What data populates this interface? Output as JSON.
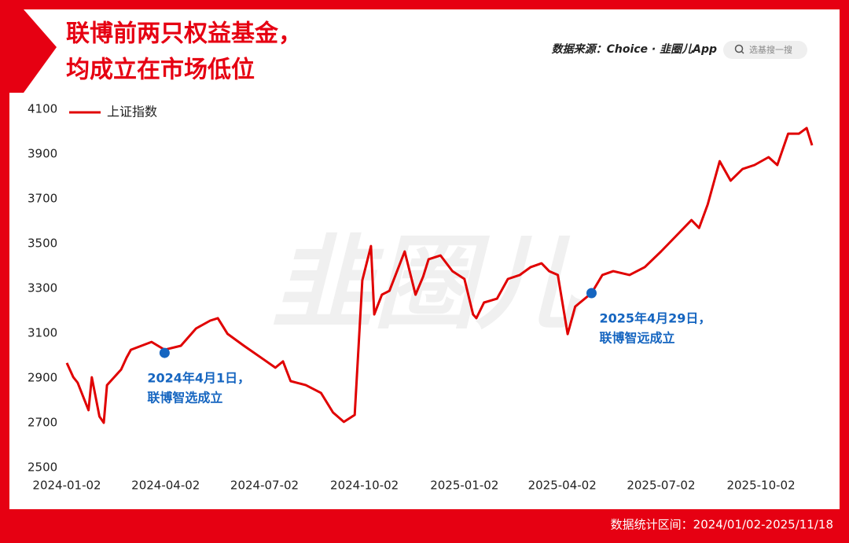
{
  "title": [
    "联博前两只权益基金，",
    "均成立在市场低位"
  ],
  "source": "数据来源：Choice · 韭圈儿App",
  "search_placeholder": "选基搜一搜",
  "watermark": "韭圈儿",
  "footer": "数据统计区间：2024/01/02-2025/11/18",
  "chart_data": {
    "type": "line",
    "x": [
      "2024-01-02",
      "2024-01-08",
      "2024-01-12",
      "2024-01-22",
      "2024-01-25",
      "2024-02-01",
      "2024-02-05",
      "2024-02-08",
      "2024-02-21",
      "2024-02-26",
      "2024-03-01",
      "2024-03-20",
      "2024-04-01",
      "2024-04-16",
      "2024-04-30",
      "2024-05-13",
      "2024-05-20",
      "2024-05-29",
      "2024-06-13",
      "2024-07-02",
      "2024-07-12",
      "2024-07-19",
      "2024-07-26",
      "2024-08-09",
      "2024-08-23",
      "2024-09-03",
      "2024-09-13",
      "2024-09-23",
      "2024-09-30",
      "2024-10-08",
      "2024-10-11",
      "2024-10-18",
      "2024-10-25",
      "2024-11-08",
      "2024-11-18",
      "2024-11-25",
      "2024-11-30",
      "2024-12-11",
      "2024-12-22",
      "2025-01-02",
      "2025-01-10",
      "2025-01-13",
      "2025-01-20",
      "2025-02-01",
      "2025-02-11",
      "2025-02-22",
      "2025-03-04",
      "2025-03-14",
      "2025-03-21",
      "2025-03-29",
      "2025-04-07",
      "2025-04-14",
      "2025-04-29",
      "2025-05-09",
      "2025-05-19",
      "2025-06-03",
      "2025-06-17",
      "2025-07-02",
      "2025-07-16",
      "2025-07-30",
      "2025-08-06",
      "2025-08-14",
      "2025-08-25",
      "2025-09-04",
      "2025-09-15",
      "2025-09-26",
      "2025-10-09",
      "2025-10-17",
      "2025-10-27",
      "2025-11-06",
      "2025-11-13",
      "2025-11-18"
    ],
    "series": [
      {
        "name": "上证指数",
        "color": "#e00000",
        "values": [
          2967,
          2903,
          2879,
          2756,
          2903,
          2728,
          2700,
          2868,
          2938,
          2991,
          3026,
          3061,
          3026,
          3044,
          3121,
          3156,
          3167,
          3097,
          3044,
          2980,
          2946,
          2974,
          2886,
          2868,
          2833,
          2746,
          2704,
          2735,
          3336,
          3489,
          3184,
          3272,
          3289,
          3465,
          3272,
          3353,
          3430,
          3447,
          3377,
          3342,
          3184,
          3167,
          3237,
          3254,
          3342,
          3360,
          3395,
          3412,
          3377,
          3360,
          3096,
          3219,
          3279,
          3360,
          3377,
          3360,
          3395,
          3465,
          3535,
          3605,
          3570,
          3675,
          3868,
          3781,
          3833,
          3851,
          3886,
          3851,
          3991,
          3991,
          4016,
          3939
        ]
      }
    ],
    "xlim": [
      "2024-01-02",
      "2025-11-18"
    ],
    "xticks": [
      "2024-01-02",
      "2024-04-02",
      "2024-07-02",
      "2024-10-02",
      "2025-01-02",
      "2025-04-02",
      "2025-07-02",
      "2025-10-02"
    ],
    "ylim": [
      2500,
      4100
    ],
    "yticks": [
      2500,
      2700,
      2900,
      3100,
      3300,
      3500,
      3700,
      3900,
      4100
    ],
    "grid": false,
    "legend": "top-left",
    "annotations": [
      {
        "x": "2024-04-01",
        "value": 3012,
        "color": "#1565c0",
        "text": [
          "2024年4月1日，",
          "联博智选成立"
        ]
      },
      {
        "x": "2025-04-29",
        "value": 3279,
        "color": "#1565c0",
        "text": [
          "2025年4月29日，",
          "联博智远成立"
        ]
      }
    ]
  }
}
